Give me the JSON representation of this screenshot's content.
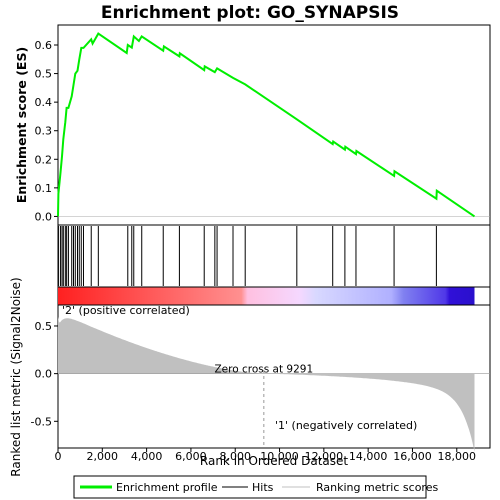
{
  "chart_data": {
    "type": "line",
    "title": "Enrichment plot: GO_SYNAPSIS",
    "xlabel": "Rank in Ordered Dataset",
    "ylabel_top": "Enrichment score (ES)",
    "ylabel_bottom": "Ranked list metric (Signal2Noise)",
    "x_max": 18800,
    "xlim": [
      0,
      19500
    ],
    "xticks": [
      0,
      2000,
      4000,
      6000,
      8000,
      10000,
      12000,
      14000,
      16000,
      18000
    ],
    "xtick_labels": [
      "0",
      "2,000",
      "4,000",
      "6,000",
      "8,000",
      "10,000",
      "12,000",
      "14,000",
      "16,000",
      "18,000"
    ],
    "es_ylim": [
      -0.03,
      0.67
    ],
    "es_yticks": [
      0.0,
      0.1,
      0.2,
      0.3,
      0.4,
      0.5,
      0.6
    ],
    "es_ytick_labels": [
      "0.0",
      "0.1",
      "0.2",
      "0.3",
      "0.4",
      "0.5",
      "0.6"
    ],
    "metric_ylim": [
      -0.78,
      0.72
    ],
    "metric_yticks": [
      0.5,
      0.0,
      -0.5
    ],
    "metric_ytick_labels": [
      "0.5",
      "0.0",
      "-0.5"
    ],
    "hits": [
      20,
      110,
      180,
      240,
      330,
      390,
      470,
      620,
      700,
      780,
      880,
      960,
      1050,
      1150,
      1500,
      1820,
      3150,
      3330,
      3420,
      3780,
      4750,
      5480,
      6600,
      7080,
      7180,
      7900,
      8450,
      10780,
      12400,
      12950,
      13450,
      15170,
      17080
    ],
    "es_curve": [
      [
        0,
        0.0
      ],
      [
        20,
        0.08
      ],
      [
        110,
        0.15
      ],
      [
        180,
        0.21
      ],
      [
        240,
        0.27
      ],
      [
        330,
        0.33
      ],
      [
        390,
        0.38
      ],
      [
        470,
        0.38
      ],
      [
        620,
        0.42
      ],
      [
        700,
        0.46
      ],
      [
        780,
        0.5
      ],
      [
        880,
        0.51
      ],
      [
        960,
        0.55
      ],
      [
        1050,
        0.59
      ],
      [
        1150,
        0.59
      ],
      [
        1500,
        0.62
      ],
      [
        1560,
        0.605
      ],
      [
        1820,
        0.64
      ],
      [
        3100,
        0.572
      ],
      [
        3150,
        0.6
      ],
      [
        3330,
        0.591
      ],
      [
        3420,
        0.63
      ],
      [
        3650,
        0.614
      ],
      [
        3780,
        0.63
      ],
      [
        4750,
        0.58
      ],
      [
        4780,
        0.595
      ],
      [
        5480,
        0.56
      ],
      [
        5500,
        0.571
      ],
      [
        6600,
        0.512
      ],
      [
        6620,
        0.525
      ],
      [
        7080,
        0.505
      ],
      [
        7180,
        0.518
      ],
      [
        7900,
        0.485
      ],
      [
        8450,
        0.462
      ],
      [
        10780,
        0.34
      ],
      [
        12400,
        0.253
      ],
      [
        12420,
        0.262
      ],
      [
        12950,
        0.234
      ],
      [
        12970,
        0.244
      ],
      [
        13450,
        0.218
      ],
      [
        13470,
        0.229
      ],
      [
        15170,
        0.142
      ],
      [
        15190,
        0.158
      ],
      [
        17080,
        0.062
      ],
      [
        17100,
        0.09
      ],
      [
        18800,
        0.0
      ]
    ],
    "zero_cross": 9291,
    "zero_cross_label": "Zero cross at 9291",
    "positive_label": "'2' (positive correlated)",
    "negative_label": "'1' (negatively correlated)",
    "legend": [
      "Enrichment profile",
      "Hits",
      "Ranking metric scores"
    ],
    "colors": {
      "enrichment": "#00ee00",
      "hits": "#000000",
      "metric_fill": "#c0c0c0",
      "positive_text": "#cc0000",
      "negative_text": "#0000cc",
      "heat_stops": [
        "#ff0000",
        "#ff7878",
        "#ffc8e8",
        "#dcd0ff",
        "#9890ff",
        "#2a1ed8"
      ]
    }
  }
}
